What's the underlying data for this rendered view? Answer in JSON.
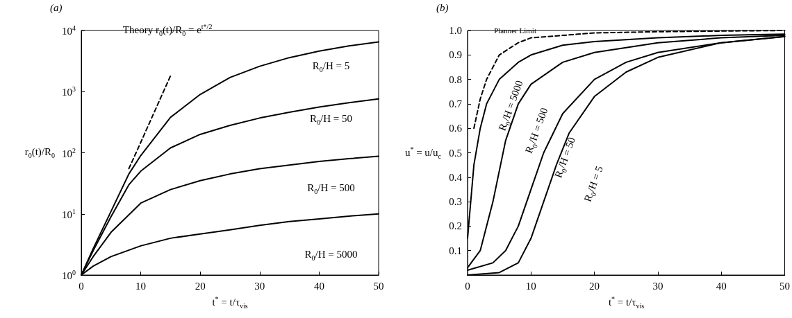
{
  "chart_data": [
    {
      "type": "line",
      "title": "(a)",
      "xlabel": "t$^{*}$ = t/τ$_{vis}$",
      "ylabel": "r$_{0}$(t)/R$_{0}$",
      "log": "y",
      "xlim": [
        0,
        50
      ],
      "xticks": [
        0,
        10,
        20,
        30,
        40,
        50
      ],
      "ylim": [
        1,
        10000
      ],
      "yticks": [
        {
          "value": 1,
          "label": "10$^{0}$"
        },
        {
          "value": 10,
          "label": "10$^{1}$"
        },
        {
          "value": 100,
          "label": "10$^{2}$"
        },
        {
          "value": 1000,
          "label": "10$^{3}$"
        },
        {
          "value": 10000,
          "label": "10$^{4}$"
        }
      ],
      "grid": false,
      "marker": "none",
      "series": [
        {
          "color": "#000000",
          "line_style": "solid",
          "x": [
            0,
            2,
            5,
            8,
            10,
            15,
            20,
            25,
            30,
            35,
            40,
            45,
            50
          ],
          "values": [
            1,
            2.7,
            11,
            45,
            90,
            380,
            900,
            1700,
            2600,
            3600,
            4600,
            5600,
            6500
          ]
        },
        {
          "color": "#000000",
          "line_style": "solid",
          "x": [
            0,
            2,
            5,
            8,
            10,
            15,
            20,
            25,
            30,
            35,
            40,
            45,
            50
          ],
          "values": [
            1,
            2.5,
            9,
            30,
            50,
            120,
            200,
            280,
            370,
            460,
            560,
            660,
            760
          ]
        },
        {
          "color": "#000000",
          "line_style": "solid",
          "x": [
            0,
            2,
            5,
            10,
            15,
            20,
            25,
            30,
            35,
            40,
            45,
            50
          ],
          "values": [
            1,
            2,
            5,
            15,
            25,
            35,
            45,
            55,
            63,
            72,
            80,
            88
          ]
        },
        {
          "color": "#000000",
          "line_style": "solid",
          "x": [
            0,
            2,
            5,
            10,
            15,
            20,
            25,
            30,
            35,
            40,
            45,
            50
          ],
          "values": [
            1,
            1.4,
            2,
            3,
            4,
            4.7,
            5.5,
            6.5,
            7.5,
            8.3,
            9.2,
            10
          ]
        },
        {
          "color": "#000000",
          "line_style": "dashed",
          "x": [
            8,
            10,
            12,
            14,
            15
          ],
          "values": [
            55,
            148,
            403,
            1097,
            1808
          ]
        }
      ],
      "annotations": [
        "Theory r$_{0}$(t)/R$_{0}$ = e$^{t*/2}$",
        "R$_{0}$/H = 5",
        "R$_{0}$/H = 50",
        "R$_{0}$/H = 500",
        "R$_{0}$/H = 5000"
      ]
    },
    {
      "type": "line",
      "title": "(b)",
      "xlabel": "t$^{*}$ = t/τ$_{vis}$",
      "ylabel": "u$^{*}$ = u/u$_{c}$",
      "xlim": [
        0,
        50
      ],
      "xticks": [
        0,
        10,
        20,
        30,
        40,
        50
      ],
      "ylim": [
        0,
        1
      ],
      "yticks": [
        0.1,
        0.2,
        0.3,
        0.4,
        0.5,
        0.6,
        0.7,
        0.8,
        0.9,
        {
          "value": 1,
          "label": "1.0"
        }
      ],
      "grid": false,
      "marker": "none",
      "series": [
        {
          "color": "#000000",
          "line_style": "solid",
          "x": [
            0,
            1,
            2,
            3,
            5,
            8,
            10,
            15,
            20,
            30,
            40,
            50
          ],
          "values": [
            0.15,
            0.45,
            0.6,
            0.7,
            0.8,
            0.87,
            0.9,
            0.94,
            0.955,
            0.97,
            0.98,
            0.985
          ]
        },
        {
          "color": "#000000",
          "line_style": "solid",
          "x": [
            0,
            2,
            4,
            6,
            8,
            10,
            15,
            20,
            30,
            40,
            50
          ],
          "values": [
            0.03,
            0.1,
            0.3,
            0.55,
            0.7,
            0.78,
            0.87,
            0.91,
            0.95,
            0.97,
            0.98
          ]
        },
        {
          "color": "#000000",
          "line_style": "solid",
          "x": [
            0,
            4,
            6,
            8,
            10,
            12,
            15,
            20,
            25,
            30,
            40,
            50
          ],
          "values": [
            0.02,
            0.05,
            0.1,
            0.2,
            0.35,
            0.5,
            0.66,
            0.8,
            0.87,
            0.91,
            0.95,
            0.975
          ]
        },
        {
          "color": "#000000",
          "line_style": "solid",
          "x": [
            0,
            5,
            8,
            10,
            12,
            14,
            16,
            20,
            25,
            30,
            40,
            50
          ],
          "values": [
            0,
            0.01,
            0.05,
            0.15,
            0.3,
            0.45,
            0.58,
            0.73,
            0.83,
            0.89,
            0.95,
            0.975
          ]
        },
        {
          "color": "#000000",
          "line_style": "dashed",
          "x": [
            1,
            2,
            3,
            5,
            8,
            10,
            15,
            20,
            30,
            50
          ],
          "values": [
            0.6,
            0.72,
            0.8,
            0.9,
            0.95,
            0.97,
            0.98,
            0.99,
            0.995,
            1
          ]
        }
      ],
      "annotations": [
        "Planner Limit",
        "R$_{0}$/H = 5000",
        "R$_{0}$/H = 500",
        "R$_{0}$/H = 50",
        "R$_{0}$/H = 5"
      ]
    }
  ]
}
